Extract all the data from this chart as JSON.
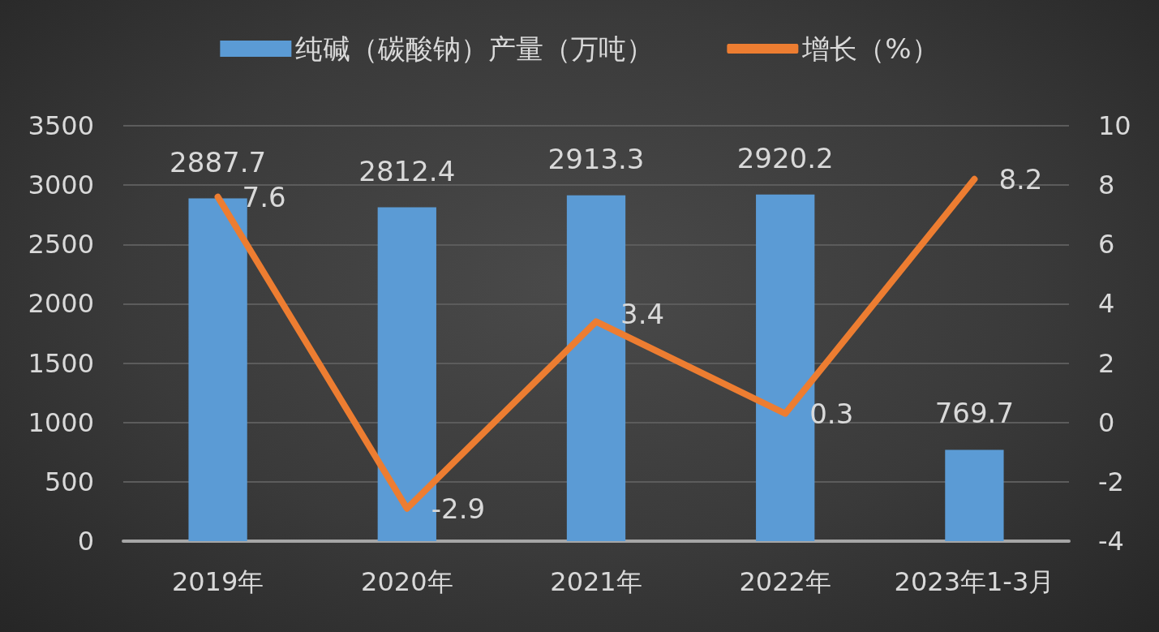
{
  "chart_data": {
    "type": "bar",
    "categories": [
      "2019年",
      "2020年",
      "2021年",
      "2022年",
      "2023年1-3月"
    ],
    "series": [
      {
        "name": "纯碱（碳酸钠）产量（万吨）",
        "color": "#5b9bd5",
        "values": [
          2887.7,
          2812.4,
          2913.3,
          2920.2,
          769.7
        ]
      },
      {
        "name": "增长（%）",
        "type": "line",
        "axis": "y2",
        "color": "#ed7d31",
        "values": [
          7.6,
          -2.9,
          3.4,
          0.3,
          8.2
        ]
      }
    ],
    "ylim": [
      0,
      3500
    ],
    "yticks": [
      0,
      500,
      1000,
      1500,
      2000,
      2500,
      3000,
      3500
    ],
    "y2lim": [
      -4,
      10
    ],
    "y2ticks": [
      -4,
      -2,
      0,
      2,
      4,
      6,
      8,
      10
    ],
    "data_labels": true,
    "grid": "y",
    "legend": "top",
    "marker": "none",
    "line_style": "solid"
  }
}
